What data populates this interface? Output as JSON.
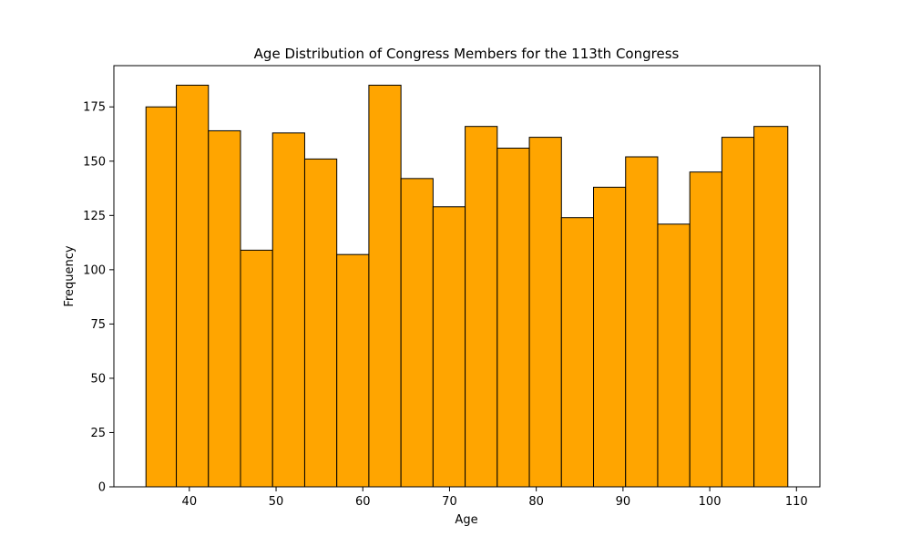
{
  "chart_data": {
    "type": "bar",
    "subtype": "histogram",
    "title": "Age Distribution of Congress Members for the 113th Congress",
    "xlabel": "Age",
    "ylabel": "Frequency",
    "bin_edges": [
      35.0,
      38.5,
      42.2,
      45.9,
      49.6,
      53.3,
      57.0,
      60.7,
      64.4,
      68.1,
      71.8,
      75.5,
      79.2,
      82.9,
      86.6,
      90.3,
      94.0,
      97.7,
      101.4,
      105.1,
      109.0
    ],
    "values": [
      175,
      185,
      164,
      109,
      163,
      151,
      107,
      185,
      142,
      129,
      166,
      156,
      161,
      124,
      138,
      152,
      121,
      145,
      161,
      166
    ],
    "xlim": [
      31.3,
      112.7
    ],
    "ylim": [
      0,
      194
    ],
    "xticks": [
      40,
      50,
      60,
      70,
      80,
      90,
      100,
      110
    ],
    "yticks": [
      0,
      25,
      50,
      75,
      100,
      125,
      150,
      175
    ],
    "grid": false,
    "legend": null,
    "colors": {
      "bar_fill": "#FFA500",
      "bar_edge": "#000000"
    }
  }
}
